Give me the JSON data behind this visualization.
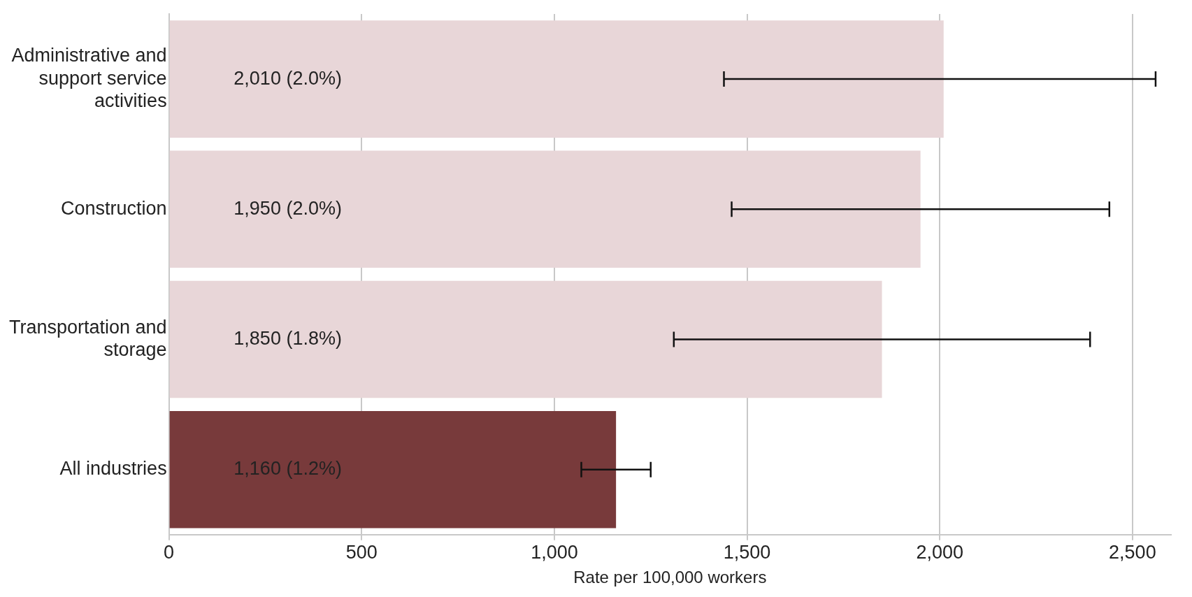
{
  "chart_data": {
    "type": "bar",
    "orientation": "horizontal",
    "xlabel": "Rate per 100,000 workers",
    "categories": [
      "Administrative and support service activities",
      "Construction",
      "Transportation and storage",
      "All industries"
    ],
    "values": [
      2010,
      1950,
      1850,
      1160
    ],
    "colors": [
      "#e8d6d8",
      "#e8d6d8",
      "#e8d6d8",
      "#783a3b"
    ],
    "errors": [
      [
        1440,
        2560
      ],
      [
        1460,
        2440
      ],
      [
        1310,
        2390
      ],
      [
        1070,
        1250
      ]
    ],
    "value_labels": [
      "2,010 (2.0%)",
      "1,950 (2.0%)",
      "1,850 (1.8%)",
      "1,160 (1.2%)"
    ],
    "xlim": [
      0,
      2600
    ],
    "xticks": [
      0,
      500,
      {
        "value": 1000,
        "label": "1,000"
      },
      {
        "value": 1500,
        "label": "1,500"
      },
      {
        "value": 2000,
        "label": "2,000"
      },
      {
        "value": 2500,
        "label": "2,500"
      }
    ],
    "grid": "x",
    "legend": false
  }
}
